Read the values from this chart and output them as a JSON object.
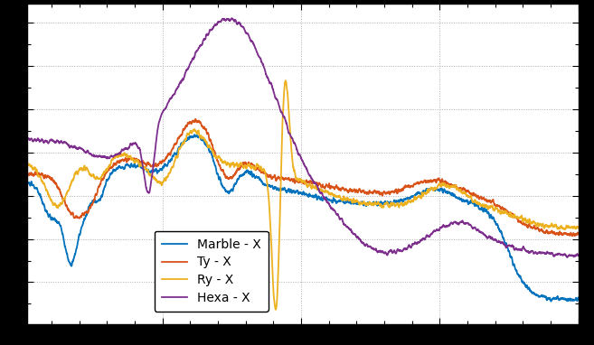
{
  "background_color": "#ffffff",
  "axes_facecolor": "#ffffff",
  "grid_color": "#b0b0b0",
  "grid_style": "dotted",
  "line_colors": {
    "marble": "#0072BD",
    "ty": "#D95319",
    "ry": "#EDB120",
    "hexa": "#7E2F8E"
  },
  "legend_labels": [
    "Marble - X",
    "Ty - X",
    "Ry - X",
    "Hexa - X"
  ],
  "legend_facecolor": "#ffffff",
  "legend_edgecolor": "#000000",
  "tick_color": "#000000",
  "spine_color": "#000000",
  "linewidth": 1.3,
  "n_points": 3000,
  "freq_min": 1,
  "freq_max": 200,
  "figsize": [
    6.57,
    3.82
  ],
  "dpi": 100,
  "outer_bg": "#000000"
}
